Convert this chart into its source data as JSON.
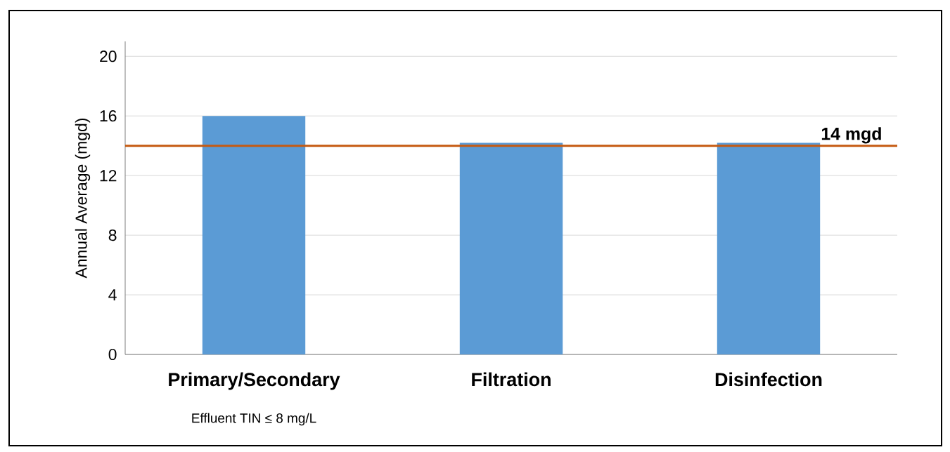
{
  "chart_data": {
    "type": "bar",
    "ylabel": "Annual Average (mgd)",
    "categories": [
      "Primary/Secondary",
      "Filtration",
      "Disinfection"
    ],
    "values": [
      16.0,
      14.2,
      14.2
    ],
    "color": "#5b9bd5",
    "ylim": [
      0,
      21
    ],
    "yticks": [
      0,
      4,
      8,
      12,
      16,
      20
    ],
    "grid": "y",
    "ref_lines": [
      {
        "axis": "y",
        "value": 14,
        "label": "14 mgd",
        "color": "#c55a11"
      }
    ],
    "annotations": [
      "Effluent TIN ≤ 8 mg/L"
    ]
  }
}
